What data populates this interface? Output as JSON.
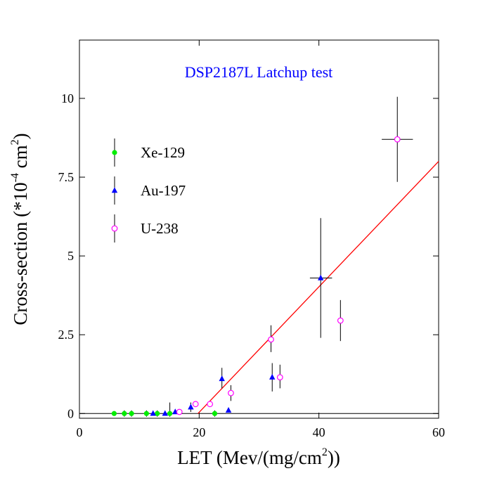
{
  "chart_data": {
    "type": "scatter",
    "title": "DSP2187L Latchup test",
    "xlabel_main": "LET (Mev/(mg/cm",
    "xlabel_sup": "2",
    "xlabel_end": "))",
    "ylabel_main": "Cross-section (*10",
    "ylabel_sup1": "-4",
    "ylabel_mid": " cm",
    "ylabel_sup2": "2",
    "ylabel_end": ")",
    "xlim": [
      0,
      60
    ],
    "ylim": [
      -0.15,
      11.85
    ],
    "xticks": [
      0,
      20,
      40,
      60
    ],
    "xtick_labels": [
      "0",
      "20",
      "40",
      "60"
    ],
    "yticks": [
      0,
      2.5,
      5,
      7.5,
      10
    ],
    "ytick_labels": [
      "0",
      "2.5",
      "5",
      "7.5",
      "10"
    ],
    "grid": false,
    "legend_position": "upper-left",
    "series": [
      {
        "name": "Xe-129",
        "marker": "filled-circle",
        "color": "#00ee00",
        "points": [
          {
            "x": 5.8,
            "y": 0.0
          },
          {
            "x": 7.5,
            "y": 0.0,
            "ylo": -0.1,
            "yhi": 0.1
          },
          {
            "x": 8.7,
            "y": 0.0,
            "ylo": -0.1,
            "yhi": 0.1
          },
          {
            "x": 11.2,
            "y": 0.0,
            "ylo": -0.1,
            "yhi": 0.1
          },
          {
            "x": 13.0,
            "y": 0.0,
            "ylo": -0.1,
            "yhi": 0.1
          },
          {
            "x": 15.1,
            "y": 0.0,
            "ylo": -0.1,
            "yhi": 0.35
          },
          {
            "x": 22.6,
            "y": 0.0,
            "ylo": -0.1,
            "yhi": 0.1
          }
        ]
      },
      {
        "name": "Au-197",
        "marker": "filled-triangle",
        "color": "#0000ff",
        "points": [
          {
            "x": 12.3,
            "y": 0.0
          },
          {
            "x": 14.3,
            "y": 0.0
          },
          {
            "x": 16.0,
            "y": 0.05
          },
          {
            "x": 18.6,
            "y": 0.2,
            "ylo": 0.05,
            "yhi": 0.35
          },
          {
            "x": 23.8,
            "y": 1.1,
            "ylo": 0.8,
            "yhi": 1.45
          },
          {
            "x": 24.9,
            "y": 0.1
          },
          {
            "x": 32.2,
            "y": 1.15,
            "ylo": 0.7,
            "yhi": 1.6
          },
          {
            "x": 40.3,
            "y": 4.3,
            "ylo": 2.4,
            "yhi": 6.2,
            "xlo": 38.5,
            "xhi": 42.2
          }
        ]
      },
      {
        "name": "U-238",
        "marker": "open-circle",
        "color": "#ff00ff",
        "points": [
          {
            "x": 16.7,
            "y": 0.05
          },
          {
            "x": 19.4,
            "y": 0.3
          },
          {
            "x": 21.8,
            "y": 0.3
          },
          {
            "x": 25.3,
            "y": 0.65,
            "ylo": 0.4,
            "yhi": 0.9
          },
          {
            "x": 32.0,
            "y": 2.35,
            "ylo": 1.95,
            "yhi": 2.8
          },
          {
            "x": 33.5,
            "y": 1.15,
            "ylo": 0.8,
            "yhi": 1.55
          },
          {
            "x": 43.6,
            "y": 2.95,
            "ylo": 2.3,
            "yhi": 3.6
          },
          {
            "x": 53.1,
            "y": 8.7,
            "ylo": 7.35,
            "yhi": 10.05,
            "xlo": 50.5,
            "xhi": 55.7
          }
        ]
      }
    ],
    "fit_line": {
      "color": "#ff0000",
      "x": [
        19.8,
        60
      ],
      "y": [
        0,
        8.0
      ]
    },
    "baseline_y": 0
  }
}
